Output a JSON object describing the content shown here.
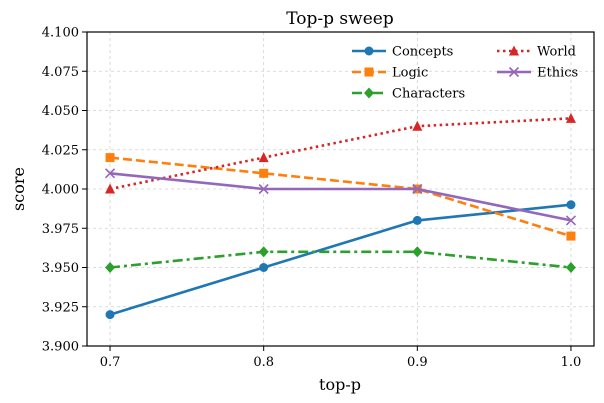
{
  "chart_data": {
    "type": "line",
    "title": "Top-p sweep",
    "xlabel": "top-p",
    "ylabel": "score",
    "x": [
      0.7,
      0.8,
      0.9,
      1.0
    ],
    "x_tick_labels": [
      "0.7",
      "0.8",
      "0.9",
      "1.0"
    ],
    "xlim": [
      0.685,
      1.015
    ],
    "ylim": [
      3.9,
      4.1
    ],
    "y_ticks": [
      3.9,
      3.925,
      3.95,
      3.975,
      4.0,
      4.025,
      4.05,
      4.075,
      4.1
    ],
    "y_tick_labels": [
      "3.900",
      "3.925",
      "3.950",
      "3.975",
      "4.000",
      "4.025",
      "4.050",
      "4.075",
      "4.100"
    ],
    "grid": true,
    "legend_position": "top-right",
    "series": [
      {
        "name": "Concepts",
        "values": [
          3.92,
          3.95,
          3.98,
          3.99
        ],
        "color": "#1f77b4",
        "marker": "circle",
        "dash": "solid"
      },
      {
        "name": "Logic",
        "values": [
          4.02,
          4.01,
          4.0,
          3.97
        ],
        "color": "#ff7f0e",
        "marker": "square",
        "dash": "dashed"
      },
      {
        "name": "Characters",
        "values": [
          3.95,
          3.96,
          3.96,
          3.95
        ],
        "color": "#2ca02c",
        "marker": "diamond",
        "dash": "dashdot"
      },
      {
        "name": "World",
        "values": [
          4.0,
          4.02,
          4.04,
          4.045
        ],
        "color": "#d62728",
        "marker": "triangle",
        "dash": "dotted"
      },
      {
        "name": "Ethics",
        "values": [
          4.01,
          4.0,
          4.0,
          3.98
        ],
        "color": "#9467bd",
        "marker": "x",
        "dash": "solid"
      }
    ]
  }
}
